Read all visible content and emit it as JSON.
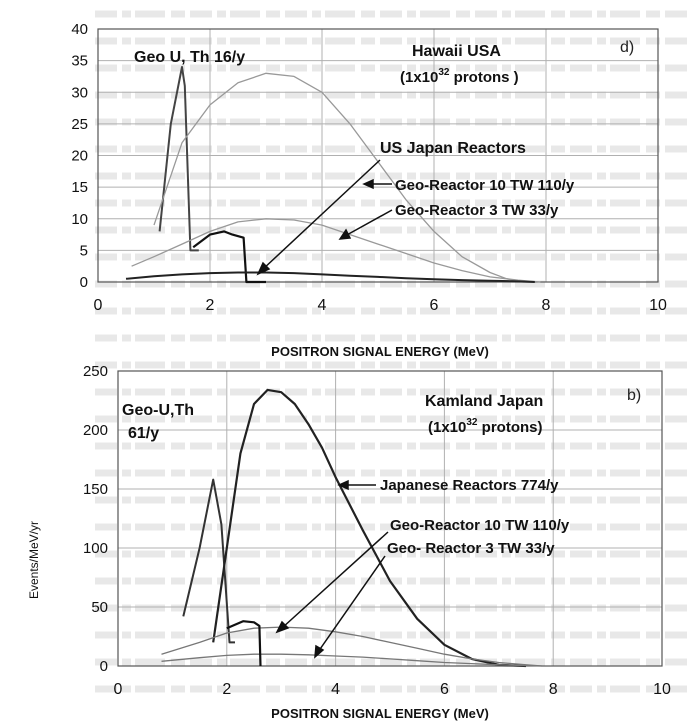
{
  "chart_data": [
    {
      "type": "line",
      "panel": "d)",
      "xlabel": "POSITRON SIGNAL ENERGY (MeV)",
      "ylabel": "",
      "xlim": [
        0,
        10
      ],
      "ylim": [
        0,
        40
      ],
      "xticks": [
        0,
        2,
        4,
        6,
        8,
        10
      ],
      "yticks": [
        0,
        5,
        10,
        15,
        20,
        25,
        30,
        35,
        40
      ],
      "grid": true,
      "annotations": {
        "geo_label": "Geo U, Th 16/y",
        "site_line1": "Hawaii USA",
        "site_line2_prefix": "(1x10",
        "site_line2_exp": "32",
        "site_line2_suffix": " protons )",
        "reactor_label": "US Japan Reactors",
        "geo10_label": "Geo-Reactor 10 TW 110/y",
        "geo3_label": "Geo-Reactor  3 TW 33/y"
      },
      "series": [
        {
          "key": "geo_uth",
          "color": "#444444",
          "width": 2,
          "x": [
            1.1,
            1.3,
            1.5,
            1.55,
            1.65,
            1.8
          ],
          "y": [
            8,
            25,
            34,
            31,
            5,
            5
          ]
        },
        {
          "key": "geo_reactor_10tw",
          "color": "#999999",
          "width": 1.3,
          "x": [
            1.0,
            1.5,
            2.0,
            2.5,
            3.0,
            3.5,
            4.0,
            4.5,
            5.0,
            5.5,
            6.0,
            6.5,
            7.0,
            7.3,
            7.6
          ],
          "y": [
            9,
            22,
            28,
            31.5,
            33,
            32.5,
            30,
            25,
            19,
            13,
            8,
            4,
            1.5,
            0.5,
            0
          ]
        },
        {
          "key": "geo_reactor_3tw",
          "color": "#999999",
          "width": 1.3,
          "x": [
            0.6,
            1.0,
            1.5,
            2.0,
            2.5,
            3.0,
            3.5,
            4.0,
            4.5,
            5.0,
            5.5,
            6.0,
            6.5,
            7.0,
            7.5,
            7.9
          ],
          "y": [
            2.5,
            4,
            6,
            8,
            9.5,
            10,
            9.8,
            9,
            7.5,
            6,
            4.5,
            3,
            1.8,
            0.8,
            0.3,
            0
          ]
        },
        {
          "key": "geo_step",
          "color": "#111111",
          "width": 2.2,
          "x": [
            1.7,
            2.0,
            2.25,
            2.4,
            2.6,
            2.65,
            3.0
          ],
          "y": [
            5.5,
            7.5,
            8,
            7.5,
            7,
            0,
            0
          ]
        },
        {
          "key": "us_japan_reactors",
          "color": "#222222",
          "width": 2,
          "x": [
            0.5,
            1.0,
            1.5,
            2.0,
            2.5,
            3.0,
            3.5,
            4.0,
            4.5,
            5.0,
            5.5,
            6.0,
            6.5,
            7.0,
            7.5,
            7.8
          ],
          "y": [
            0.5,
            0.9,
            1.2,
            1.4,
            1.5,
            1.5,
            1.4,
            1.2,
            1.0,
            0.8,
            0.6,
            0.45,
            0.3,
            0.2,
            0.1,
            0
          ]
        }
      ]
    },
    {
      "type": "line",
      "panel": "b)",
      "xlabel": "POSITRON SIGNAL ENERGY (MeV)",
      "ylabel": "Events/MeV/yr",
      "xlim": [
        0,
        10
      ],
      "ylim": [
        0,
        250
      ],
      "xticks": [
        0,
        2,
        4,
        6,
        8,
        10
      ],
      "yticks": [
        0,
        50,
        100,
        150,
        200,
        250
      ],
      "grid": true,
      "annotations": {
        "geo_label_line1": "Geo-U,Th",
        "geo_label_line2": "61/y",
        "site_line1": "Kamland Japan",
        "site_line2_prefix": "(1x10",
        "site_line2_exp": "32",
        "site_line2_suffix": " protons)",
        "reactor_label": "Japanese Reactors 774/y",
        "geo10_label": "Geo-Reactor 10 TW 110/y",
        "geo3_label": "Geo- Reactor   3 TW 33/y"
      },
      "series": [
        {
          "key": "geo_uth",
          "color": "#333333",
          "width": 2,
          "x": [
            1.2,
            1.5,
            1.75,
            1.9,
            2.05,
            2.15
          ],
          "y": [
            42,
            100,
            158,
            120,
            20,
            20
          ]
        },
        {
          "key": "japanese_reactors",
          "color": "#222222",
          "width": 2.2,
          "x": [
            1.75,
            2.0,
            2.25,
            2.5,
            2.75,
            3.0,
            3.25,
            3.5,
            3.75,
            4.0,
            4.5,
            5.0,
            5.5,
            6.0,
            6.5,
            7.0,
            7.5
          ],
          "y": [
            20,
            100,
            180,
            222,
            234,
            232,
            222,
            205,
            185,
            160,
            115,
            72,
            40,
            18,
            6,
            1,
            0
          ]
        },
        {
          "key": "geo_reactor_10tw",
          "color": "#777777",
          "width": 1.3,
          "x": [
            0.8,
            1.5,
            2.0,
            2.5,
            3.0,
            3.5,
            4.0,
            4.5,
            5.0,
            5.5,
            6.0,
            6.5,
            7.0,
            7.5,
            7.8
          ],
          "y": [
            10,
            20,
            28,
            32,
            33,
            32,
            29,
            25,
            20,
            15,
            10,
            6,
            3,
            1,
            0
          ]
        },
        {
          "key": "geo_reactor_3tw",
          "color": "#777777",
          "width": 1.3,
          "x": [
            0.8,
            1.5,
            2.0,
            2.5,
            3.0,
            3.5,
            4.0,
            4.5,
            5.0,
            5.5,
            6.0,
            6.5,
            7.0,
            7.5,
            7.8
          ],
          "y": [
            4,
            7,
            9,
            10,
            10,
            9.5,
            8.5,
            7.5,
            6,
            4.5,
            3,
            2,
            1,
            0.3,
            0
          ]
        },
        {
          "key": "geo_step",
          "color": "#111111",
          "width": 2.2,
          "x": [
            2.0,
            2.3,
            2.5,
            2.6,
            2.62
          ],
          "y": [
            32,
            38,
            37,
            34,
            0
          ]
        }
      ]
    }
  ]
}
